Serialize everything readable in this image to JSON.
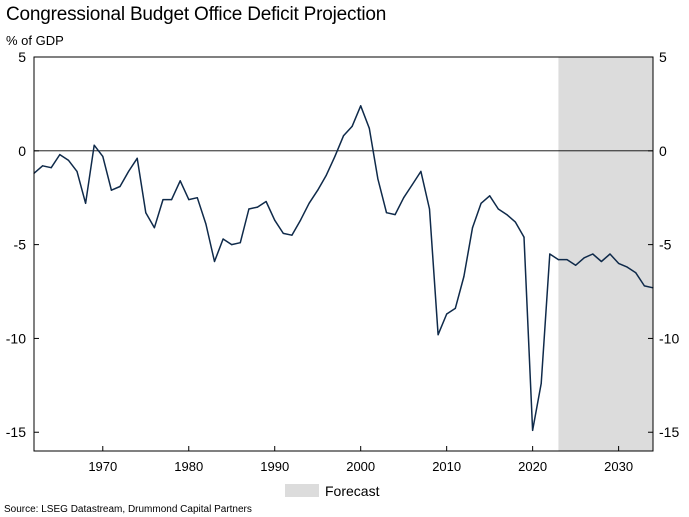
{
  "title": "Congressional Budget Office Deficit Projection",
  "subtitle": "% of GDP",
  "source": "Source: LSEG Datastream, Drummond Capital Partners",
  "colors": {
    "line": "#0f2a4a",
    "forecast_band": "#dcdcdc",
    "zero_line": "#000000"
  },
  "chart_data": {
    "type": "line",
    "title": "Congressional Budget Office Deficit Projection",
    "ylabel": "% of GDP",
    "xlabel": "",
    "xlim": [
      1962,
      2034
    ],
    "ylim": [
      -16,
      5
    ],
    "x_ticks": [
      1970,
      1980,
      1990,
      2000,
      2010,
      2020,
      2030
    ],
    "y_ticks": [
      5,
      0,
      -5,
      -10,
      -15
    ],
    "grid": false,
    "legend": {
      "position": "bottom-center",
      "entries": [
        {
          "label": "Forecast",
          "type": "shaded-band"
        }
      ]
    },
    "forecast": {
      "label": "Forecast",
      "start": 2023,
      "end": 2034
    },
    "series": [
      {
        "name": "Deficit (% of GDP)",
        "x": [
          1962,
          1963,
          1964,
          1965,
          1966,
          1967,
          1968,
          1969,
          1970,
          1971,
          1972,
          1973,
          1974,
          1975,
          1976,
          1977,
          1978,
          1979,
          1980,
          1981,
          1982,
          1983,
          1984,
          1985,
          1986,
          1987,
          1988,
          1989,
          1990,
          1991,
          1992,
          1993,
          1994,
          1995,
          1996,
          1997,
          1998,
          1999,
          2000,
          2001,
          2002,
          2003,
          2004,
          2005,
          2006,
          2007,
          2008,
          2009,
          2010,
          2011,
          2012,
          2013,
          2014,
          2015,
          2016,
          2017,
          2018,
          2019,
          2020,
          2021,
          2022,
          2023,
          2024,
          2025,
          2026,
          2027,
          2028,
          2029,
          2030,
          2031,
          2032,
          2033,
          2034
        ],
        "values": [
          -1.2,
          -0.8,
          -0.9,
          -0.2,
          -0.5,
          -1.1,
          -2.8,
          0.3,
          -0.3,
          -2.1,
          -1.9,
          -1.1,
          -0.4,
          -3.3,
          -4.1,
          -2.6,
          -2.6,
          -1.6,
          -2.6,
          -2.5,
          -3.9,
          -5.9,
          -4.7,
          -5.0,
          -4.9,
          -3.1,
          -3.0,
          -2.7,
          -3.7,
          -4.4,
          -4.5,
          -3.7,
          -2.8,
          -2.1,
          -1.3,
          -0.3,
          0.8,
          1.3,
          2.4,
          1.2,
          -1.5,
          -3.3,
          -3.4,
          -2.5,
          -1.8,
          -1.1,
          -3.1,
          -9.8,
          -8.7,
          -8.4,
          -6.7,
          -4.1,
          -2.8,
          -2.4,
          -3.1,
          -3.4,
          -3.8,
          -4.6,
          -14.9,
          -12.4,
          -5.5,
          -5.8,
          -5.8,
          -6.1,
          -5.7,
          -5.5,
          -5.9,
          -5.5,
          -6.0,
          -6.2,
          -6.5,
          -7.2,
          -7.3
        ]
      }
    ]
  }
}
